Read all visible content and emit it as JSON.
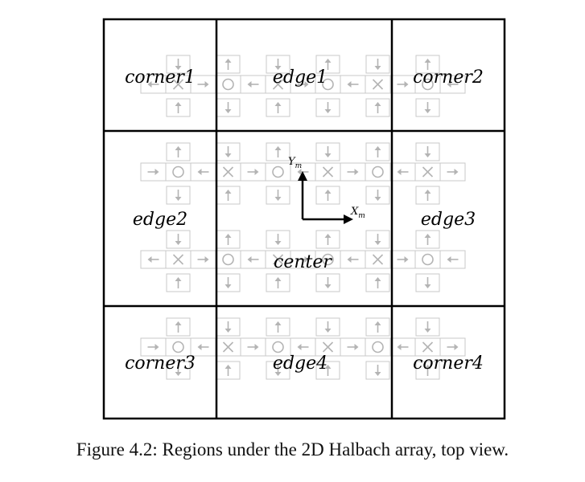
{
  "regions": {
    "corner1": "corner1",
    "edge1": "edge1",
    "corner2": "corner2",
    "edge2": "edge2",
    "edge3": "edge3",
    "center": "center",
    "corner3": "corner3",
    "edge4": "edge4",
    "corner4": "corner4"
  },
  "axes": {
    "x": "X",
    "x_sub": "m",
    "y": "Y",
    "y_sub": "m"
  },
  "caption": "Figure 4.2: Regions under the 2D Halbach array, top view.",
  "colors": {
    "border": "#000000",
    "grid": "#c8c8c8",
    "symbol": "#b4b4b4"
  }
}
